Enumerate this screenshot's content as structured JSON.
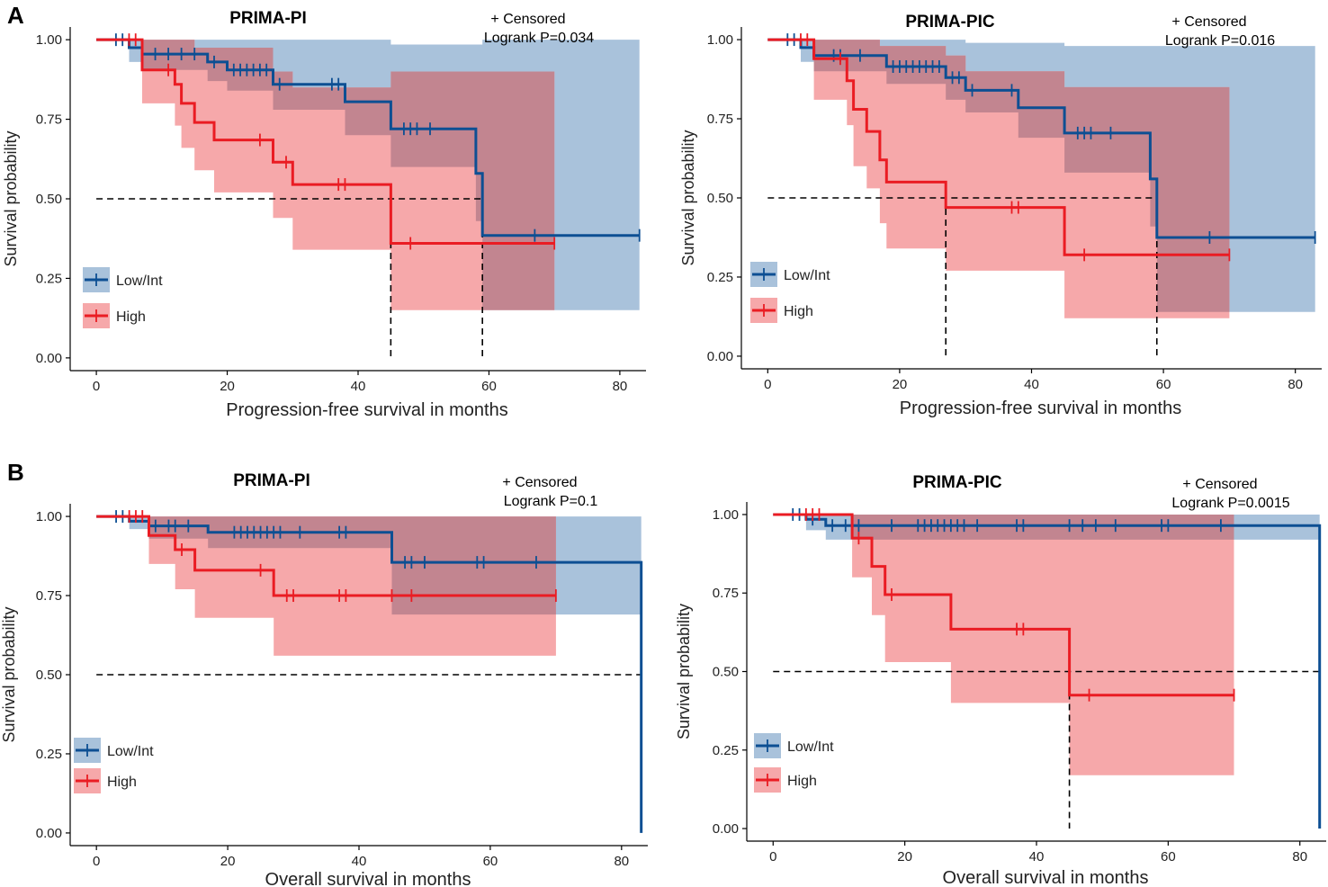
{
  "panel_labels": {
    "A": "A",
    "B": "B"
  },
  "legend": {
    "censored": "+ Censored",
    "low_int": "Low/Int",
    "high": "High"
  },
  "colors": {
    "low_int_line": "#0d4f93",
    "low_int_band": "#a9c2db",
    "high_line": "#ea1c23",
    "high_band": "#f6a8aa",
    "overlap_band": "#c28590",
    "overlap_line": "#3a3d6e"
  },
  "chart_data": [
    {
      "id": "A-left",
      "type": "line",
      "title": "PRIMA-PI",
      "pvalue": "Logrank P=0.034",
      "xlabel": "Progression-free survival in months",
      "ylabel": "Survival probability",
      "xlim": [
        -4,
        84
      ],
      "ylim": [
        -0.04,
        1.04
      ],
      "xticks": [
        0,
        20,
        40,
        60,
        80
      ],
      "yticks": [
        0,
        0.25,
        0.5,
        0.75,
        1
      ],
      "ytick_labels": [
        "0.00",
        "0.25",
        "0.50",
        "0.75",
        "1.00"
      ],
      "median_line": {
        "y": 0.5,
        "from_x": 0,
        "medians": [
          45,
          59
        ]
      },
      "series": [
        {
          "name": "Low/Int",
          "end": 83,
          "steps": [
            [
              0,
              1
            ],
            [
              5,
              0.975
            ],
            [
              7,
              0.955
            ],
            [
              17,
              0.93
            ],
            [
              20,
              0.905
            ],
            [
              27,
              0.86
            ],
            [
              38,
              0.805
            ],
            [
              45,
              0.72
            ],
            [
              58,
              0.58
            ],
            [
              59,
              0.385
            ]
          ],
          "lower": [
            [
              0,
              1
            ],
            [
              5,
              0.93
            ],
            [
              7,
              0.905
            ],
            [
              17,
              0.87
            ],
            [
              20,
              0.84
            ],
            [
              27,
              0.78
            ],
            [
              38,
              0.7
            ],
            [
              45,
              0.6
            ],
            [
              58,
              0.43
            ],
            [
              59,
              0.15
            ]
          ],
          "upper": [
            [
              0,
              1
            ],
            [
              15,
              1
            ],
            [
              45,
              0.985
            ],
            [
              59,
              1
            ]
          ],
          "censored": [
            3,
            4,
            9,
            11,
            13,
            15,
            18,
            21,
            22,
            23,
            24,
            25,
            26,
            28,
            36,
            37,
            47,
            48,
            49,
            51,
            67,
            83
          ]
        },
        {
          "name": "High",
          "end": 70,
          "steps": [
            [
              0,
              1
            ],
            [
              7,
              0.905
            ],
            [
              12,
              0.86
            ],
            [
              13,
              0.8
            ],
            [
              15,
              0.74
            ],
            [
              18,
              0.685
            ],
            [
              27,
              0.615
            ],
            [
              30,
              0.545
            ],
            [
              45,
              0.36
            ]
          ],
          "lower": [
            [
              0,
              1
            ],
            [
              7,
              0.8
            ],
            [
              12,
              0.73
            ],
            [
              13,
              0.66
            ],
            [
              15,
              0.59
            ],
            [
              18,
              0.52
            ],
            [
              27,
              0.44
            ],
            [
              30,
              0.34
            ],
            [
              45,
              0.15
            ]
          ],
          "upper": [
            [
              0,
              1
            ],
            [
              15,
              0.975
            ],
            [
              27,
              0.9
            ],
            [
              30,
              0.85
            ],
            [
              45,
              0.9
            ]
          ],
          "censored": [
            5,
            6,
            11,
            25,
            29,
            37,
            38,
            48,
            70
          ]
        }
      ]
    },
    {
      "id": "A-right",
      "type": "line",
      "title": "PRIMA-PIC",
      "pvalue": "Logrank P=0.016",
      "xlabel": "Progression-free survival in months",
      "ylabel": "Survival probability",
      "xlim": [
        -4,
        84
      ],
      "ylim": [
        -0.04,
        1.04
      ],
      "xticks": [
        0,
        20,
        40,
        60,
        80
      ],
      "yticks": [
        0,
        0.25,
        0.5,
        0.75,
        1
      ],
      "ytick_labels": [
        "0.00",
        "0.25",
        "0.50",
        "0.75",
        "1.00"
      ],
      "median_line": {
        "y": 0.5,
        "from_x": 0,
        "medians": [
          27,
          59
        ]
      },
      "series": [
        {
          "name": "Low/Int",
          "end": 83,
          "steps": [
            [
              0,
              1
            ],
            [
              5,
              0.975
            ],
            [
              7,
              0.95
            ],
            [
              18,
              0.915
            ],
            [
              27,
              0.88
            ],
            [
              30,
              0.84
            ],
            [
              38,
              0.785
            ],
            [
              45,
              0.705
            ],
            [
              58,
              0.56
            ],
            [
              59,
              0.375
            ]
          ],
          "lower": [
            [
              0,
              1
            ],
            [
              5,
              0.93
            ],
            [
              7,
              0.9
            ],
            [
              18,
              0.86
            ],
            [
              27,
              0.81
            ],
            [
              30,
              0.77
            ],
            [
              38,
              0.69
            ],
            [
              45,
              0.58
            ],
            [
              58,
              0.41
            ],
            [
              59,
              0.14
            ]
          ],
          "upper": [
            [
              0,
              1
            ],
            [
              17,
              1
            ],
            [
              30,
              0.99
            ],
            [
              45,
              0.98
            ],
            [
              59,
              0.98
            ]
          ],
          "censored": [
            3,
            4,
            10,
            11,
            14,
            19,
            20,
            21,
            22,
            23,
            24,
            25,
            26,
            28,
            29,
            31,
            37,
            47,
            48,
            49,
            52,
            67,
            83
          ]
        },
        {
          "name": "High",
          "end": 70,
          "steps": [
            [
              0,
              1
            ],
            [
              7,
              0.94
            ],
            [
              12,
              0.87
            ],
            [
              13,
              0.78
            ],
            [
              15,
              0.71
            ],
            [
              17,
              0.62
            ],
            [
              18,
              0.55
            ],
            [
              27,
              0.47
            ],
            [
              45,
              0.32
            ]
          ],
          "lower": [
            [
              0,
              1
            ],
            [
              7,
              0.81
            ],
            [
              12,
              0.73
            ],
            [
              13,
              0.6
            ],
            [
              15,
              0.53
            ],
            [
              17,
              0.42
            ],
            [
              18,
              0.34
            ],
            [
              27,
              0.27
            ],
            [
              45,
              0.12
            ]
          ],
          "upper": [
            [
              0,
              1
            ],
            [
              17,
              0.98
            ],
            [
              27,
              0.95
            ],
            [
              30,
              0.9
            ],
            [
              45,
              0.85
            ]
          ],
          "censored": [
            5,
            6,
            11,
            37,
            38,
            48,
            70
          ]
        }
      ]
    },
    {
      "id": "B-left",
      "type": "line",
      "title": "PRIMA-PI",
      "pvalue": "Logrank P=0.1",
      "xlabel": "Overall survival in months",
      "ylabel": "Survival probability",
      "xlim": [
        -4,
        84
      ],
      "ylim": [
        -0.04,
        1.04
      ],
      "xticks": [
        0,
        20,
        40,
        60,
        80
      ],
      "yticks": [
        0,
        0.25,
        0.5,
        0.75,
        1
      ],
      "ytick_labels": [
        "0.00",
        "0.25",
        "0.50",
        "0.75",
        "1.00"
      ],
      "median_line": {
        "y": 0.5,
        "from_x": 0,
        "to_x": 83,
        "medians": []
      },
      "series": [
        {
          "name": "Low/Int",
          "end": 83,
          "steps": [
            [
              0,
              1
            ],
            [
              5,
              0.985
            ],
            [
              8,
              0.97
            ],
            [
              17,
              0.95
            ],
            [
              45,
              0.855
            ],
            [
              83,
              0
            ]
          ],
          "lower": [
            [
              0,
              1
            ],
            [
              5,
              0.96
            ],
            [
              8,
              0.93
            ],
            [
              17,
              0.9
            ],
            [
              45,
              0.69
            ]
          ],
          "upper": [
            [
              0,
              1
            ]
          ],
          "censored": [
            3,
            4,
            9,
            11,
            12,
            14,
            21,
            22,
            23,
            24,
            25,
            26,
            27,
            28,
            31,
            37,
            38,
            47,
            48,
            50,
            58,
            59,
            67
          ]
        },
        {
          "name": "High",
          "end": 70,
          "steps": [
            [
              0,
              1
            ],
            [
              8,
              0.94
            ],
            [
              12,
              0.895
            ],
            [
              15,
              0.83
            ],
            [
              27,
              0.75
            ]
          ],
          "lower": [
            [
              0,
              1
            ],
            [
              8,
              0.85
            ],
            [
              12,
              0.77
            ],
            [
              15,
              0.68
            ],
            [
              27,
              0.56
            ]
          ],
          "upper": [
            [
              0,
              1
            ]
          ],
          "censored": [
            5,
            6,
            7,
            13,
            25,
            29,
            30,
            37,
            38,
            45,
            48,
            70
          ]
        }
      ]
    },
    {
      "id": "B-right",
      "type": "line",
      "title": "PRIMA-PIC",
      "pvalue": "Logrank P=0.0015",
      "xlabel": "Overall survival in months",
      "ylabel": "Survival probability",
      "xlim": [
        -4,
        84
      ],
      "ylim": [
        -0.04,
        1.04
      ],
      "xticks": [
        0,
        20,
        40,
        60,
        80
      ],
      "yticks": [
        0,
        0.25,
        0.5,
        0.75,
        1
      ],
      "ytick_labels": [
        "0.00",
        "0.25",
        "0.50",
        "0.75",
        "1.00"
      ],
      "median_line": {
        "y": 0.5,
        "from_x": 0,
        "to_x": 83,
        "medians": [
          45
        ]
      },
      "series": [
        {
          "name": "Low/Int",
          "end": 83,
          "steps": [
            [
              0,
              1
            ],
            [
              5,
              0.985
            ],
            [
              8,
              0.965
            ],
            [
              83,
              0
            ]
          ],
          "lower": [
            [
              0,
              1
            ],
            [
              5,
              0.95
            ],
            [
              8,
              0.92
            ]
          ],
          "upper": [
            [
              0,
              1
            ]
          ],
          "censored": [
            3,
            4,
            6,
            9,
            11,
            13,
            18,
            22,
            23,
            24,
            25,
            26,
            27,
            28,
            29,
            31,
            37,
            38,
            45,
            47,
            49,
            52,
            59,
            60,
            68
          ]
        },
        {
          "name": "High",
          "end": 70,
          "steps": [
            [
              0,
              1
            ],
            [
              12,
              0.925
            ],
            [
              15,
              0.835
            ],
            [
              17,
              0.745
            ],
            [
              27,
              0.635
            ],
            [
              45,
              0.425
            ]
          ],
          "lower": [
            [
              0,
              1
            ],
            [
              12,
              0.8
            ],
            [
              15,
              0.68
            ],
            [
              17,
              0.53
            ],
            [
              27,
              0.4
            ],
            [
              45,
              0.17
            ]
          ],
          "upper": [
            [
              0,
              1
            ]
          ],
          "censored": [
            5,
            6,
            7,
            13,
            18,
            37,
            38,
            48,
            70
          ]
        }
      ]
    }
  ]
}
